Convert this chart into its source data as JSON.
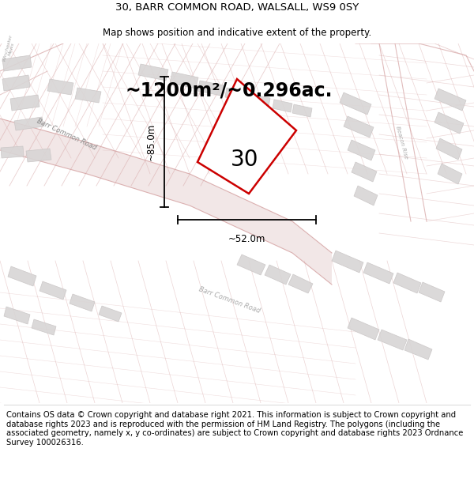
{
  "title_line1": "30, BARR COMMON ROAD, WALSALL, WS9 0SY",
  "title_line2": "Map shows position and indicative extent of the property.",
  "area_label": "~1200m²/~0.296ac.",
  "property_number": "30",
  "dim_vertical": "~85.0m",
  "dim_horizontal": "~52.0m",
  "footer_text": "Contains OS data © Crown copyright and database right 2021. This information is subject to Crown copyright and database rights 2023 and is reproduced with the permission of HM Land Registry. The polygons (including the associated geometry, namely x, y co-ordinates) are subject to Crown copyright and database rights 2023 Ordnance Survey 100026316.",
  "bg_color": "#ffffff",
  "map_bg": "#f5f2f2",
  "road_line_color": "#d4a0a0",
  "road_fill_color": "#ead8d8",
  "building_fill": "#d8d5d5",
  "building_edge": "#c8c4c4",
  "plot_outline_color": "#cc0000",
  "title_fontsize": 9.5,
  "subtitle_fontsize": 8.5,
  "area_fontsize": 17,
  "number_fontsize": 20,
  "dim_fontsize": 8.5,
  "footer_fontsize": 7.2
}
